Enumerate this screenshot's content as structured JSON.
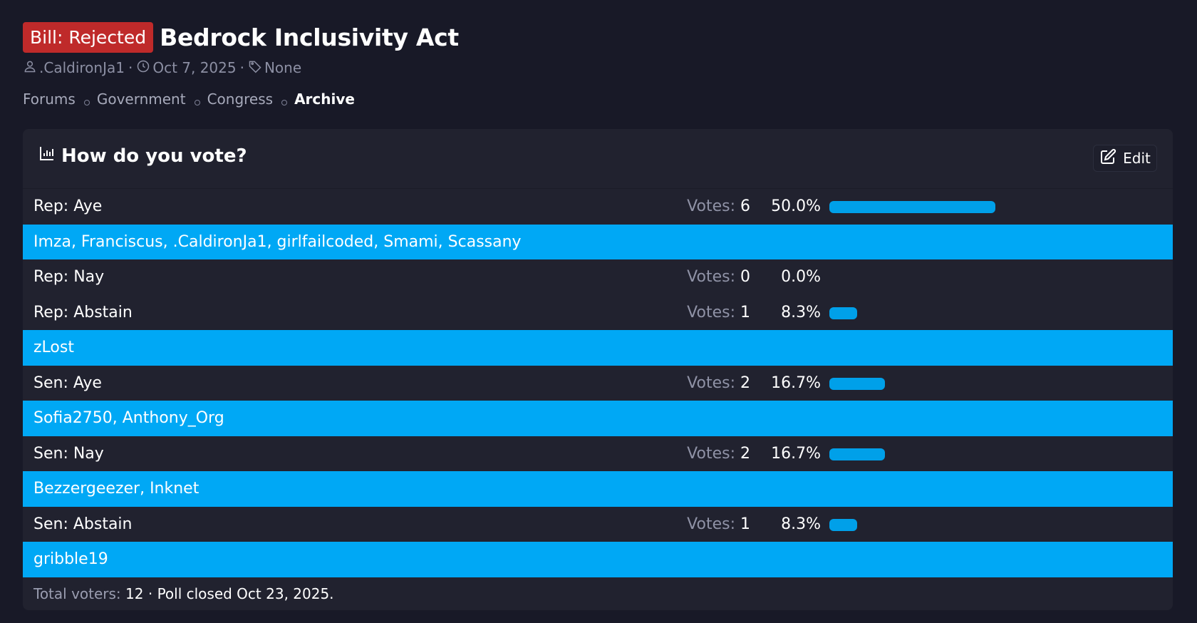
{
  "thread": {
    "prefix": "Bill: Rejected",
    "title": "Bedrock Inclusivity Act",
    "author": ".CaldironJa1",
    "date": "Oct 7, 2025",
    "tags": "None"
  },
  "breadcrumb": [
    "Forums",
    "Government",
    "Congress",
    "Archive"
  ],
  "poll": {
    "title": "How do you vote?",
    "edit_label": "Edit",
    "votes_label": "Votes:",
    "options": [
      {
        "label": "Rep: Aye",
        "votes": "6",
        "percent": "50.0%",
        "fraction": 0.5,
        "voters": "Imza, Franciscus, .CaldironJa1, girlfailcoded, Smami, Scassany"
      },
      {
        "label": "Rep: Nay",
        "votes": "0",
        "percent": "0.0%",
        "fraction": 0.0,
        "voters": ""
      },
      {
        "label": "Rep: Abstain",
        "votes": "1",
        "percent": "8.3%",
        "fraction": 0.083,
        "voters": "zLost"
      },
      {
        "label": "Sen: Aye",
        "votes": "2",
        "percent": "16.7%",
        "fraction": 0.167,
        "voters": "Sofia2750, Anthony_Org"
      },
      {
        "label": "Sen: Nay",
        "votes": "2",
        "percent": "16.7%",
        "fraction": 0.167,
        "voters": "Bezzergeezer, Inknet"
      },
      {
        "label": "Sen: Abstain",
        "votes": "1",
        "percent": "8.3%",
        "fraction": 0.083,
        "voters": "gribble19"
      }
    ],
    "footer": {
      "total_label": "Total voters:",
      "total": "12",
      "closed_text": "Poll closed Oct 23, 2025."
    }
  },
  "colors": {
    "background": "#181927",
    "panel": "#21222f",
    "prefix_red": "#bf2a2a",
    "bar_blue": "#00a0e9",
    "voters_blue": "#00a8f5"
  }
}
